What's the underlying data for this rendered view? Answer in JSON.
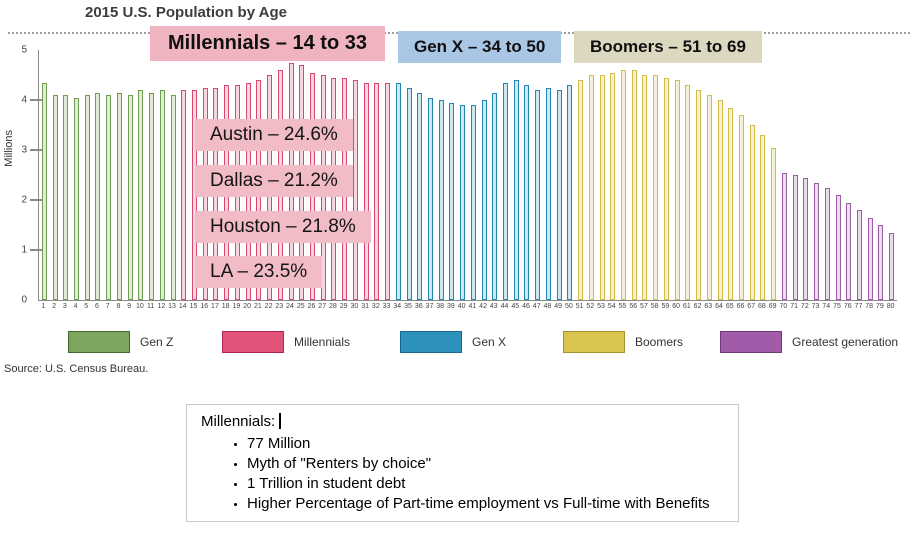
{
  "title": "2015 U.S. Population by Age",
  "chart_data": {
    "type": "bar",
    "title": "2015 U.S. Population by Age",
    "xlabel": "",
    "ylabel": "Millions",
    "ylim": [
      0,
      5
    ],
    "x_start": 1,
    "x_end": 80,
    "grid": false,
    "series": [
      {
        "name": "Gen Z",
        "age_range": [
          1,
          13
        ],
        "color": "#6f9e53",
        "values": [
          4.35,
          4.1,
          4.1,
          4.05,
          4.1,
          4.15,
          4.1,
          4.15,
          4.1,
          4.2,
          4.15,
          4.2,
          4.1
        ]
      },
      {
        "name": "Millennials",
        "age_range": [
          14,
          33
        ],
        "color": "#d9486f",
        "values": [
          4.2,
          4.2,
          4.25,
          4.25,
          4.3,
          4.3,
          4.35,
          4.4,
          4.5,
          4.6,
          4.75,
          4.7,
          4.55,
          4.5,
          4.45,
          4.45,
          4.4,
          4.35,
          4.35,
          4.35
        ]
      },
      {
        "name": "Gen X",
        "age_range": [
          34,
          50
        ],
        "color": "#2387b4",
        "values": [
          4.35,
          4.25,
          4.15,
          4.05,
          4.0,
          3.95,
          3.9,
          3.9,
          4.0,
          4.15,
          4.35,
          4.4,
          4.3,
          4.2,
          4.25,
          4.2,
          4.3
        ]
      },
      {
        "name": "Boomers",
        "age_range": [
          51,
          69
        ],
        "color": "#d2bd49",
        "values": [
          4.4,
          4.5,
          4.5,
          4.55,
          4.6,
          4.6,
          4.5,
          4.5,
          4.45,
          4.4,
          4.3,
          4.2,
          4.1,
          4.0,
          3.85,
          3.7,
          3.5,
          3.3,
          3.05
        ]
      },
      {
        "name": "Greatest generation",
        "age_range": [
          70,
          80
        ],
        "color": "#9c5fa5",
        "values": [
          2.55,
          2.5,
          2.45,
          2.35,
          2.25,
          2.1,
          1.95,
          1.8,
          1.65,
          1.5,
          1.35
        ]
      }
    ]
  },
  "annotations": {
    "millennials_band": "Millennials – 14 to 33",
    "genx_band": "Gen X – 34 to 50",
    "boomers_band": "Boomers – 51 to 69",
    "band_colors": {
      "millennials": "#f0b4c0",
      "genx": "#a9c6e5",
      "boomers": "#dbd8bf"
    },
    "city_bg": "#f2bcc7",
    "city_stats": [
      "Austin – 24.6%",
      "Dallas – 21.2%",
      "Houston – 21.8%",
      "LA – 23.5%"
    ]
  },
  "legend": {
    "items": [
      {
        "label": "Gen Z",
        "fill": "#7da55f",
        "border": "#3f6d2d"
      },
      {
        "label": "Millennials",
        "fill": "#e2537a",
        "border": "#ad2850"
      },
      {
        "label": "Gen X",
        "fill": "#2d93bd",
        "border": "#156a8e"
      },
      {
        "label": "Boomers",
        "fill": "#d9c44f",
        "border": "#a3922f"
      },
      {
        "label": "Greatest generation",
        "fill": "#a05ca8",
        "border": "#6f3a78"
      }
    ]
  },
  "source": "Source: U.S. Census Bureau.",
  "textbox": {
    "heading": "Millennials:",
    "bullets": [
      "77 Million",
      "Myth of \"Renters by choice\"",
      "1 Trillion in student debt",
      "Higher Percentage of Part-time employment vs Full-time with Benefits"
    ]
  }
}
